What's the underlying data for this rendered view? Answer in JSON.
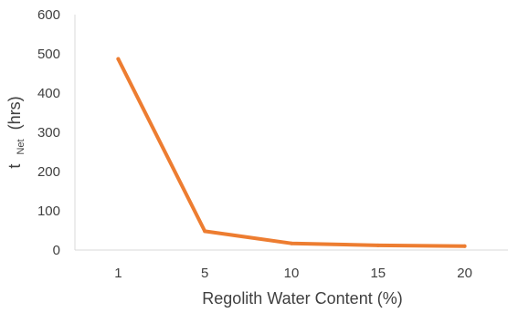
{
  "chart_data": {
    "type": "line",
    "categories": [
      "1",
      "5",
      "10",
      "15",
      "20"
    ],
    "series": [
      {
        "values": [
          487,
          48,
          17,
          12,
          10
        ],
        "color": "#ED7D31"
      }
    ],
    "xlabel": "Regolith Water Content (%)",
    "ylabel": {
      "prefix": "t",
      "subscript": "Net",
      "suffix": "(hrs)"
    },
    "ylim": [
      0,
      600
    ],
    "yticks": [
      0,
      100,
      200,
      300,
      400,
      500,
      600
    ],
    "grid": false,
    "legend": false
  }
}
